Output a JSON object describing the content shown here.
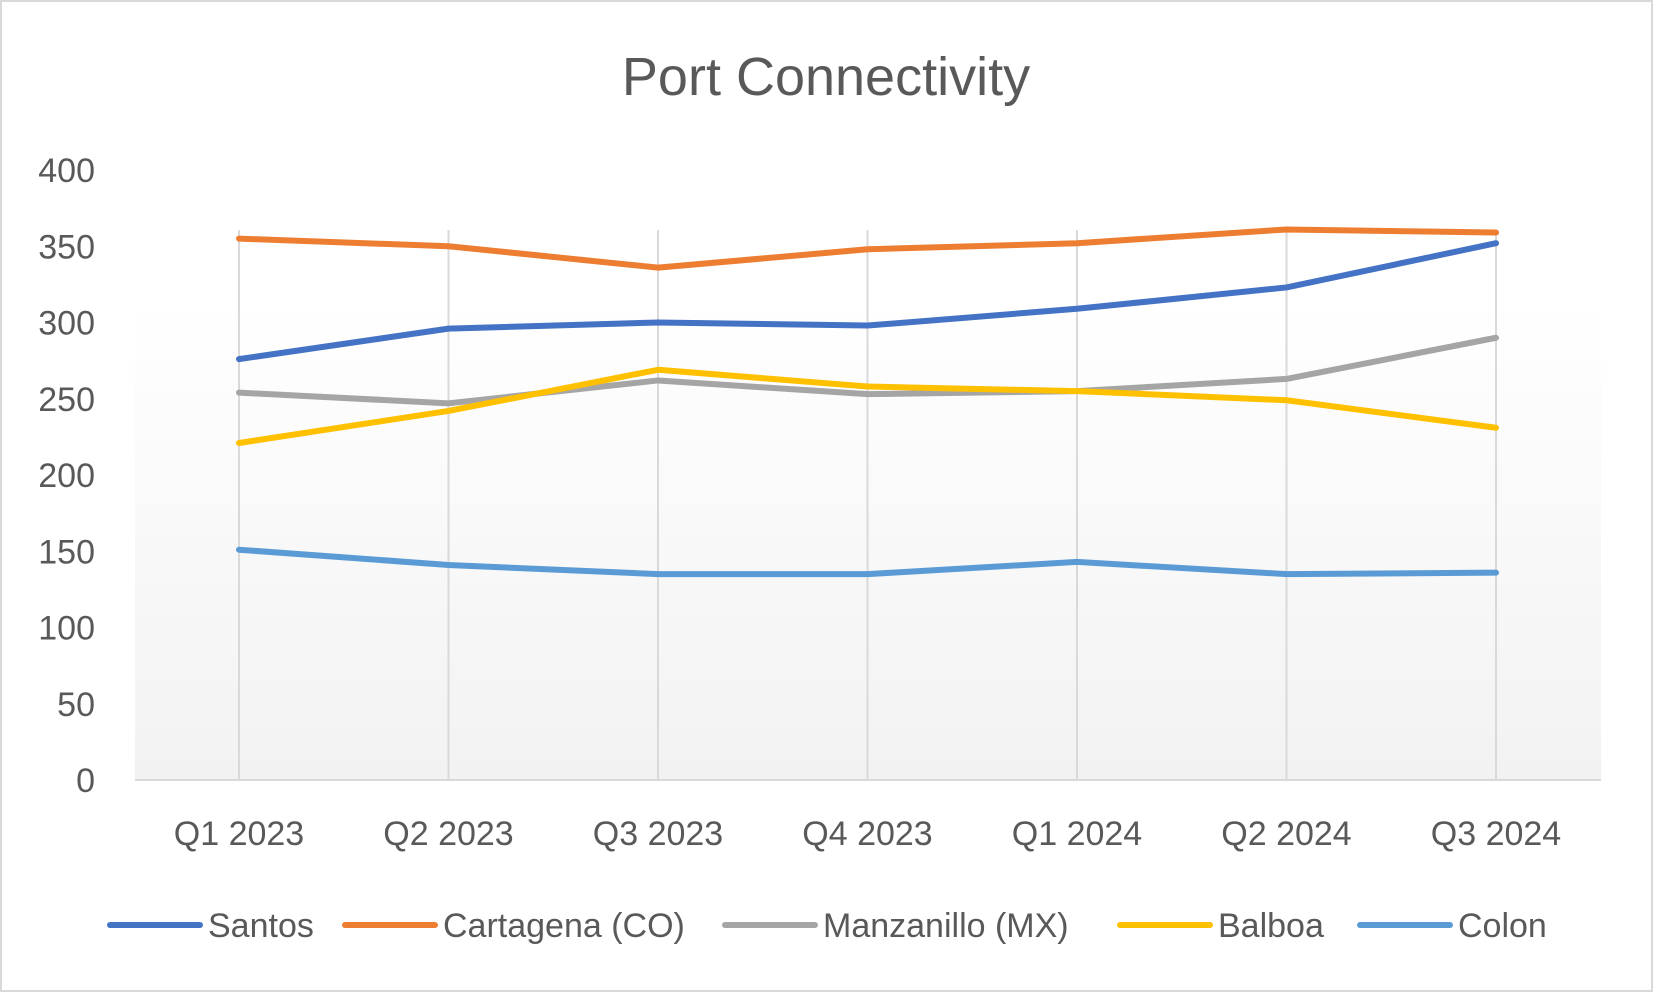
{
  "chart_data": {
    "type": "line",
    "title": "Port Connectivity",
    "xlabel": "",
    "ylabel": "",
    "categories": [
      "Q1 2023",
      "Q2 2023",
      "Q3 2023",
      "Q4 2023",
      "Q1 2024",
      "Q2 2024",
      "Q3 2024"
    ],
    "ylim": [
      0,
      400
    ],
    "yticks": [
      0,
      50,
      100,
      150,
      200,
      250,
      300,
      350,
      400
    ],
    "grid": "vertical",
    "legend": "bottom",
    "series": [
      {
        "name": "Santos",
        "color": "#4472C4",
        "values": [
          276,
          296,
          300,
          298,
          309,
          323,
          352
        ]
      },
      {
        "name": "Cartagena (CO)",
        "color": "#ED7D31",
        "values": [
          355,
          350,
          336,
          348,
          352,
          361,
          359
        ]
      },
      {
        "name": "Manzanillo (MX)",
        "color": "#A5A5A5",
        "values": [
          254,
          247,
          262,
          253,
          255,
          263,
          290
        ]
      },
      {
        "name": "Balboa",
        "color": "#FFC000",
        "values": [
          221,
          242,
          269,
          258,
          255,
          249,
          231
        ]
      },
      {
        "name": "Colon",
        "color": "#5B9BD5",
        "values": [
          151,
          141,
          135,
          135,
          143,
          135,
          136
        ]
      }
    ]
  }
}
